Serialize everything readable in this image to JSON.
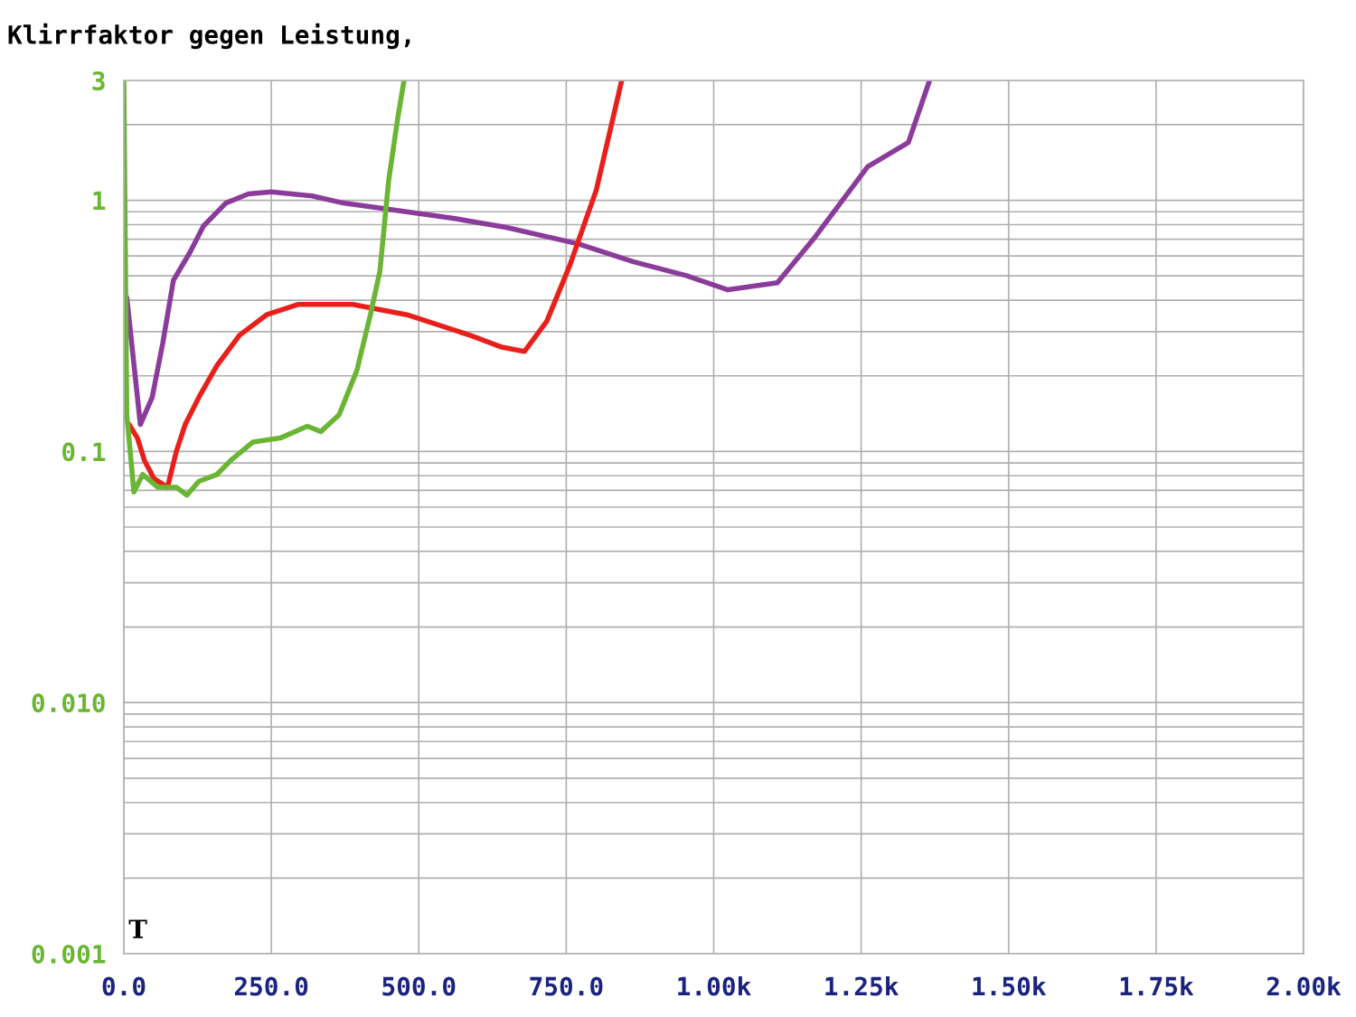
{
  "chart_data": {
    "type": "line",
    "title": "Klirrfaktor gegen Leistung,",
    "log": "y",
    "grid": true,
    "marker": "none",
    "line_style": "solid",
    "xlim": [
      0,
      2000
    ],
    "xticks": [
      {
        "value": 0,
        "label": "0.0"
      },
      {
        "value": 250,
        "label": "250.0"
      },
      {
        "value": 500,
        "label": "500.0"
      },
      {
        "value": 750,
        "label": "750.0"
      },
      {
        "value": 1000,
        "label": "1.00k"
      },
      {
        "value": 1250,
        "label": "1.25k"
      },
      {
        "value": 1500,
        "label": "1.50k"
      },
      {
        "value": 1750,
        "label": "1.75k"
      },
      {
        "value": 2000,
        "label": "2.00k"
      }
    ],
    "ylim": [
      0.001,
      3
    ],
    "yticks": [
      {
        "value": 0.001,
        "label": "0.001"
      },
      {
        "value": 0.01,
        "label": "0.010"
      },
      0.1,
      1,
      3
    ],
    "annotations": [
      "T"
    ],
    "series": [
      {
        "color": "#8b3c9b",
        "x": [
          5,
          28,
          48,
          66,
          84,
          112,
          135,
          173,
          211,
          250,
          319,
          372,
          449,
          556,
          648,
          771,
          863,
          955,
          1024,
          1108,
          1169,
          1261,
          1330,
          1366
        ],
        "values": [
          0.41,
          0.128,
          0.164,
          0.27,
          0.48,
          0.62,
          0.79,
          0.975,
          1.06,
          1.08,
          1.04,
          0.975,
          0.92,
          0.85,
          0.78,
          0.67,
          0.57,
          0.5,
          0.44,
          0.47,
          0.7,
          1.36,
          1.7,
          3.0
        ]
      },
      {
        "color": "#e8201c",
        "x": [
          9,
          23,
          35,
          51,
          74,
          89,
          104,
          127,
          158,
          196,
          242,
          296,
          388,
          480,
          587,
          641,
          679,
          717,
          756,
          801,
          844
        ],
        "values": [
          0.128,
          0.113,
          0.092,
          0.078,
          0.072,
          0.1,
          0.128,
          0.164,
          0.22,
          0.29,
          0.35,
          0.385,
          0.385,
          0.35,
          0.29,
          0.26,
          0.25,
          0.33,
          0.55,
          1.1,
          3.0
        ]
      },
      {
        "color": "#6ab533",
        "x": [
          0,
          5,
          17,
          32,
          58,
          89,
          107,
          127,
          158,
          181,
          219,
          265,
          311,
          334,
          365,
          395,
          418,
          434,
          449,
          464,
          475
        ],
        "values": [
          3.0,
          0.14,
          0.069,
          0.081,
          0.072,
          0.072,
          0.067,
          0.076,
          0.081,
          0.092,
          0.109,
          0.113,
          0.126,
          0.12,
          0.14,
          0.21,
          0.35,
          0.52,
          1.2,
          2.1,
          3.0
        ]
      }
    ]
  }
}
